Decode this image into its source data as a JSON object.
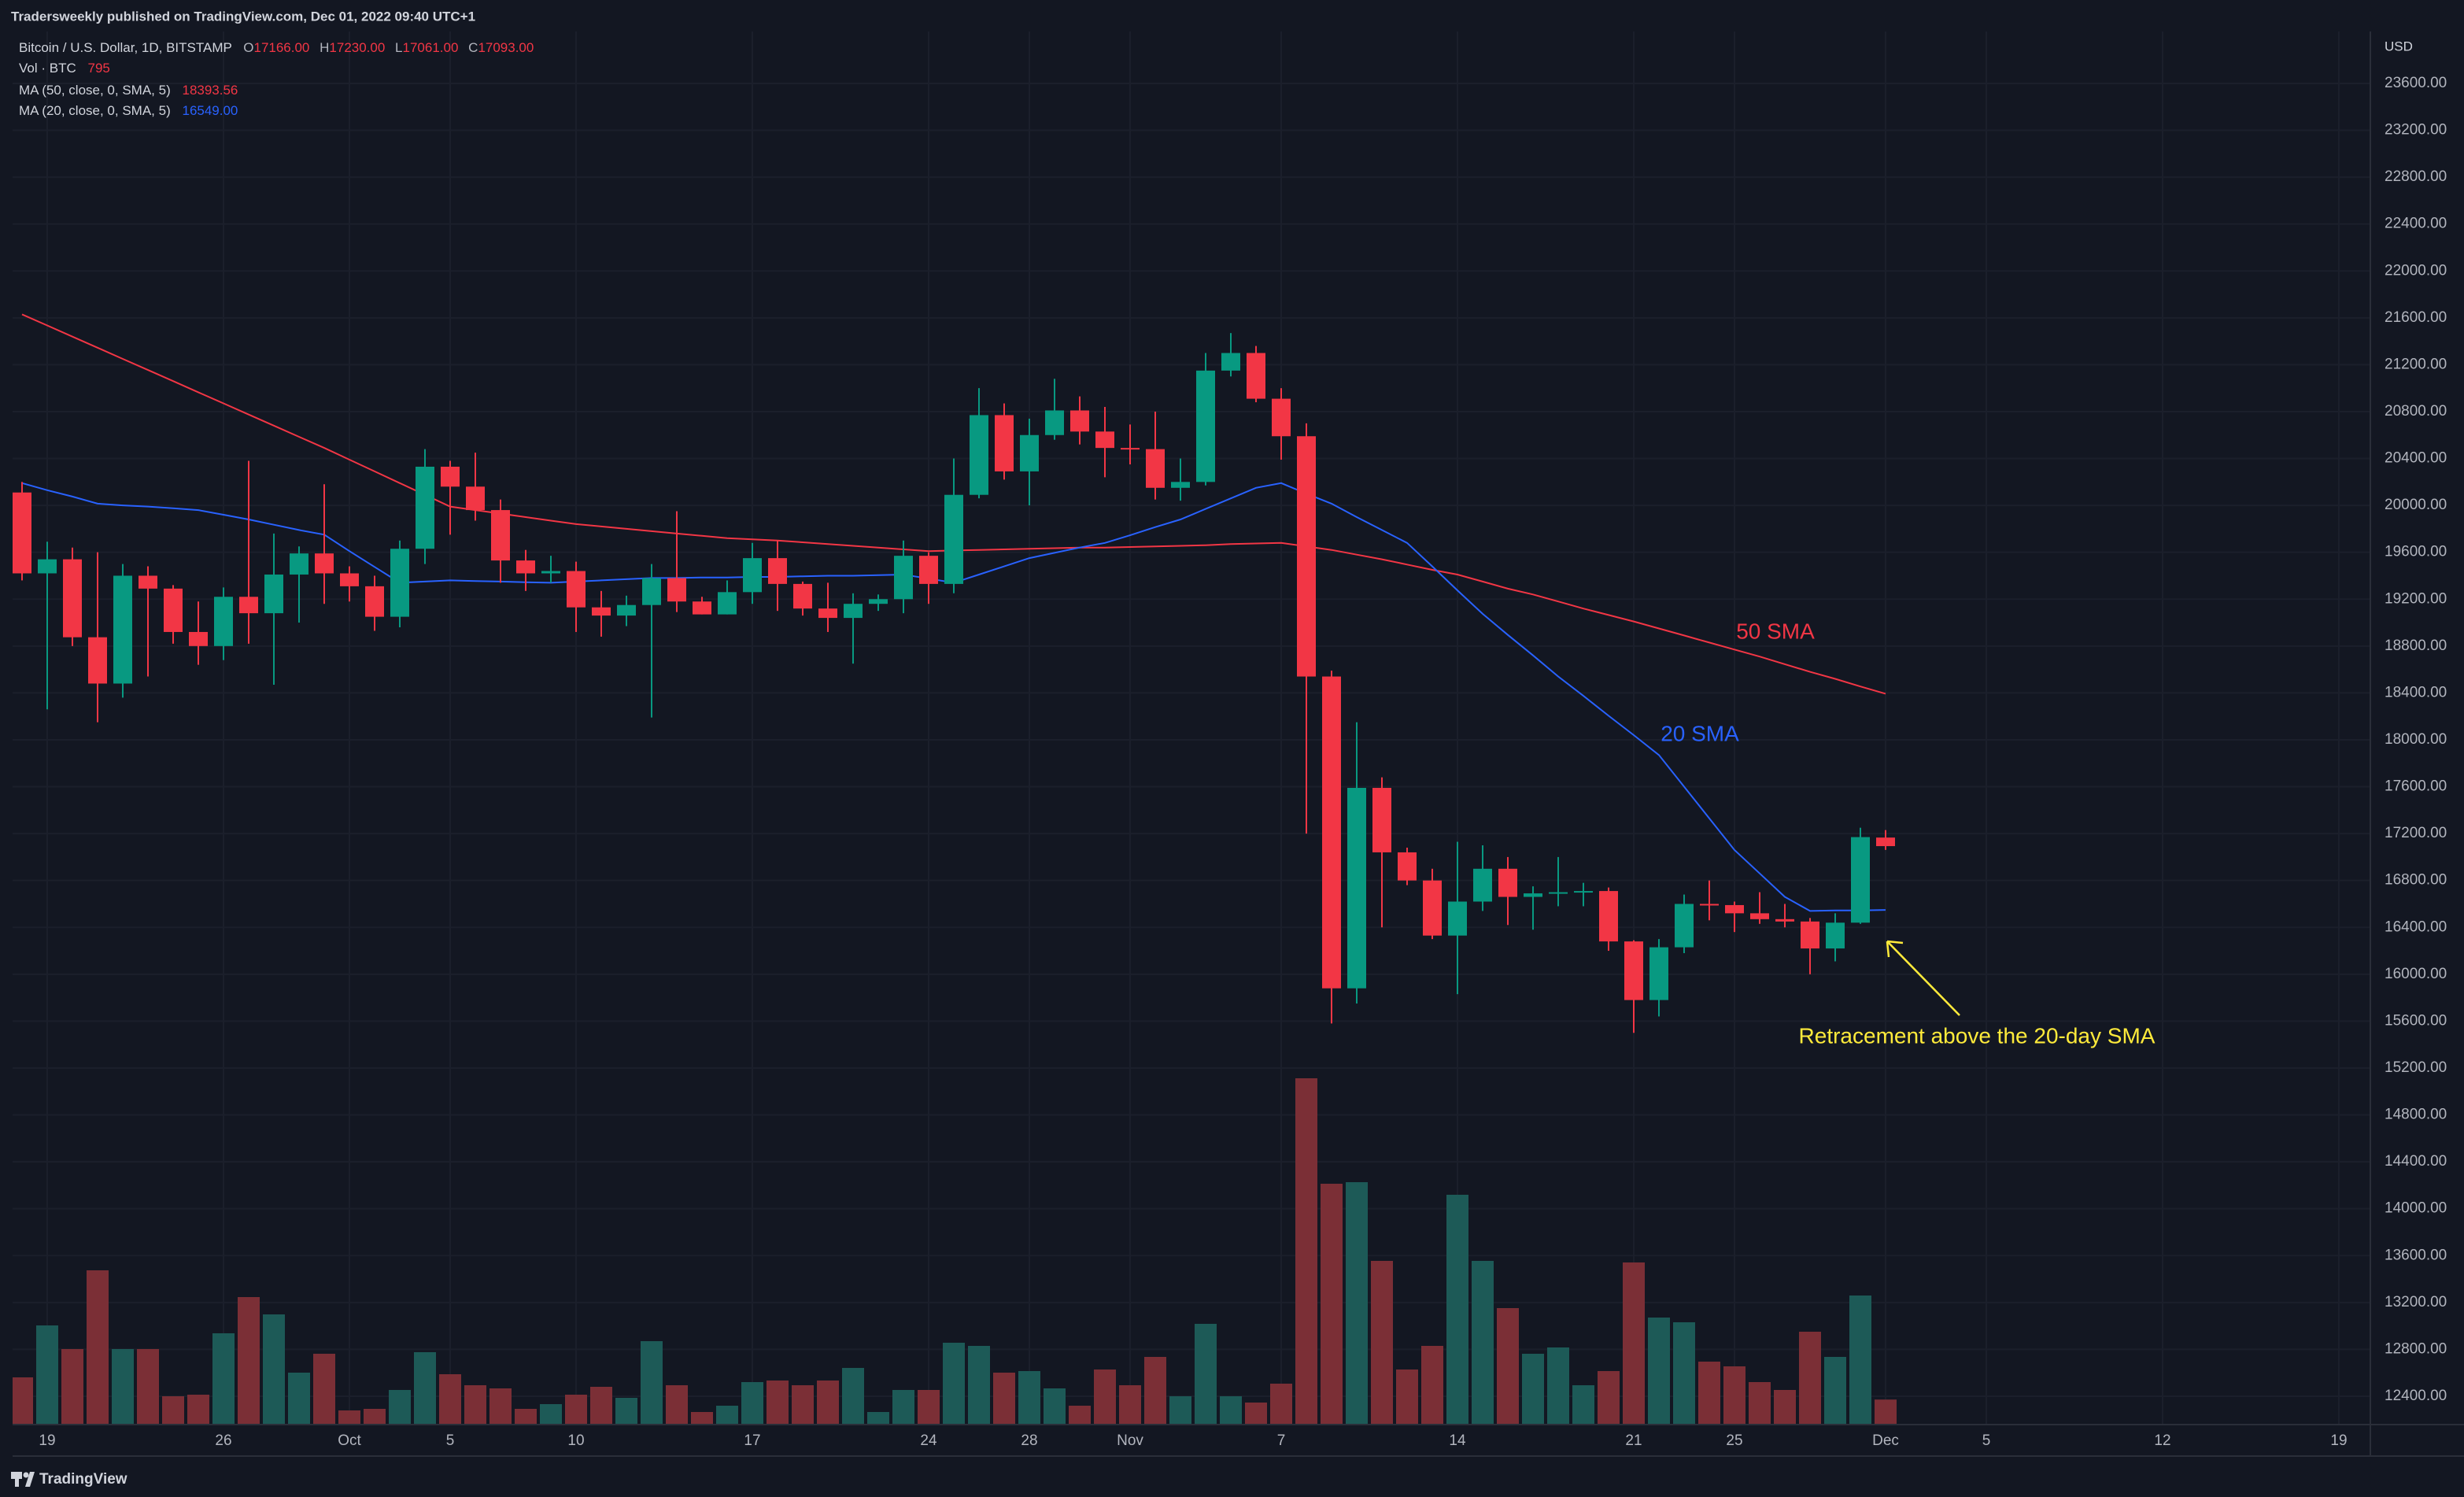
{
  "header": {
    "title": "Tradersweekly published on TradingView.com, Dec 01, 2022 09:40 UTC+1",
    "symbol": "Bitcoin / U.S. Dollar, 1D, BITSTAMP",
    "ohlc": [
      {
        "key": "O",
        "value": "17166.00"
      },
      {
        "key": "H",
        "value": "17230.00"
      },
      {
        "key": "L",
        "value": "17061.00"
      },
      {
        "key": "C",
        "value": "17093.00"
      }
    ],
    "volume_label": "Vol · BTC",
    "volume_value": "795",
    "ma_values": [
      "18393.56",
      "16549.00"
    ],
    "currency": "USD",
    "footer": "TradingView"
  },
  "chart_data": {
    "type": "candlestick",
    "up_color": "#089981",
    "down_color": "#f23645",
    "volume_up_color": "#1d5a57",
    "volume_down_color": "#7b2f36",
    "x": [
      "2022-09-18",
      "2022-09-19",
      "2022-09-20",
      "2022-09-21",
      "2022-09-22",
      "2022-09-23",
      "2022-09-24",
      "2022-09-25",
      "2022-09-26",
      "2022-09-27",
      "2022-09-28",
      "2022-09-29",
      "2022-09-30",
      "2022-10-01",
      "2022-10-02",
      "2022-10-03",
      "2022-10-04",
      "2022-10-05",
      "2022-10-06",
      "2022-10-07",
      "2022-10-08",
      "2022-10-09",
      "2022-10-10",
      "2022-10-11",
      "2022-10-12",
      "2022-10-13",
      "2022-10-14",
      "2022-10-15",
      "2022-10-16",
      "2022-10-17",
      "2022-10-18",
      "2022-10-19",
      "2022-10-20",
      "2022-10-21",
      "2022-10-22",
      "2022-10-23",
      "2022-10-24",
      "2022-10-25",
      "2022-10-26",
      "2022-10-27",
      "2022-10-28",
      "2022-10-29",
      "2022-10-30",
      "2022-10-31",
      "2022-11-01",
      "2022-11-02",
      "2022-11-03",
      "2022-11-04",
      "2022-11-05",
      "2022-11-06",
      "2022-11-07",
      "2022-11-08",
      "2022-11-09",
      "2022-11-10",
      "2022-11-11",
      "2022-11-12",
      "2022-11-13",
      "2022-11-14",
      "2022-11-15",
      "2022-11-16",
      "2022-11-17",
      "2022-11-18",
      "2022-11-19",
      "2022-11-20",
      "2022-11-21",
      "2022-11-22",
      "2022-11-23",
      "2022-11-24",
      "2022-11-25",
      "2022-11-26",
      "2022-11-27",
      "2022-11-28",
      "2022-11-29",
      "2022-11-30",
      "2022-12-01"
    ],
    "open": [
      20110,
      19420,
      19540,
      18875,
      18480,
      19400,
      19290,
      18920,
      18800,
      19220,
      19080,
      19410,
      19590,
      19420,
      19310,
      19050,
      19630,
      20330,
      20160,
      19960,
      19530,
      19420,
      19440,
      19130,
      19060,
      19150,
      19380,
      19180,
      19070,
      19260,
      19550,
      19330,
      19120,
      19040,
      19160,
      19200,
      19570,
      19330,
      20090,
      20770,
      20290,
      20600,
      20810,
      20630,
      20490,
      20480,
      20150,
      20200,
      21150,
      21300,
      20910,
      20590,
      18540,
      15880,
      17590,
      17040,
      16800,
      16330,
      16620,
      16900,
      16660,
      16690,
      16700,
      16710,
      16280,
      15780,
      16230,
      16600,
      16590,
      16520,
      16470,
      16450,
      16220,
      16440,
      17166
    ],
    "high": [
      20200,
      19690,
      19640,
      19600,
      19500,
      19480,
      19320,
      19180,
      19300,
      20380,
      19760,
      19650,
      20180,
      19480,
      19400,
      19700,
      20480,
      20380,
      20450,
      20050,
      19620,
      19570,
      19520,
      19270,
      19230,
      19500,
      19950,
      19220,
      19360,
      19680,
      19700,
      19350,
      19340,
      19250,
      19240,
      19700,
      19600,
      20400,
      21000,
      20870,
      20740,
      21080,
      20930,
      20840,
      20690,
      20800,
      20400,
      21300,
      21470,
      21360,
      21000,
      20700,
      18590,
      18150,
      17680,
      17080,
      16900,
      17130,
      17100,
      17000,
      16750,
      17000,
      16780,
      16740,
      16290,
      16300,
      16680,
      16800,
      16620,
      16700,
      16600,
      16480,
      16520,
      17250,
      17230
    ],
    "low": [
      19360,
      18260,
      18800,
      18150,
      18360,
      18540,
      18820,
      18640,
      18680,
      18820,
      18470,
      19000,
      19160,
      19180,
      18930,
      18960,
      19500,
      19750,
      19870,
      19340,
      19270,
      19340,
      18920,
      18880,
      18970,
      18190,
      19090,
      19070,
      19070,
      19160,
      19100,
      19060,
      18920,
      18650,
      19100,
      19080,
      19160,
      19250,
      20060,
      20220,
      20000,
      20560,
      20520,
      20240,
      20350,
      20050,
      20040,
      20170,
      21100,
      20880,
      20390,
      17200,
      15580,
      15750,
      16400,
      16760,
      16300,
      15830,
      16540,
      16420,
      16380,
      16580,
      16580,
      16200,
      15500,
      15640,
      16180,
      16460,
      16360,
      16430,
      16400,
      16000,
      16110,
      16430,
      17061
    ],
    "close": [
      19420,
      19540,
      18875,
      18480,
      19400,
      19290,
      18920,
      18800,
      19220,
      19080,
      19410,
      19590,
      19420,
      19310,
      19050,
      19630,
      20330,
      20160,
      19960,
      19530,
      19420,
      19440,
      19130,
      19060,
      19150,
      19380,
      19180,
      19070,
      19260,
      19550,
      19330,
      19120,
      19040,
      19160,
      19200,
      19570,
      19330,
      20090,
      20770,
      20290,
      20600,
      20810,
      20630,
      20490,
      20480,
      20150,
      20200,
      21150,
      21300,
      20910,
      20590,
      18540,
      15880,
      17590,
      17040,
      16800,
      16330,
      16620,
      16900,
      16660,
      16690,
      16700,
      16710,
      16280,
      15780,
      16230,
      16600,
      16590,
      16520,
      16470,
      16450,
      16220,
      16440,
      17170,
      17093
    ],
    "volume": [
      1500,
      3150,
      2400,
      4900,
      2400,
      2400,
      900,
      950,
      2900,
      4050,
      3500,
      1650,
      2250,
      450,
      500,
      1100,
      2300,
      1600,
      1250,
      1150,
      500,
      650,
      950,
      1200,
      850,
      2650,
      1250,
      400,
      600,
      1350,
      1400,
      1250,
      1400,
      1800,
      400,
      1100,
      1100,
      2600,
      2500,
      1650,
      1700,
      1150,
      600,
      1750,
      1250,
      2150,
      900,
      3200,
      900,
      700,
      1300,
      11000,
      7650,
      7700,
      5200,
      1750,
      2500,
      7300,
      5200,
      3700,
      2250,
      2450,
      1250,
      1700,
      5150,
      3400,
      3250,
      2000,
      1850,
      1350,
      1100,
      2950,
      2150,
      4100,
      795
    ],
    "series": [
      {
        "name": "MA (50, close, 0, SMA, 5)",
        "color": "#f23645",
        "values": [
          21630,
          21535,
          21440,
          21345,
          21250,
          21155,
          21060,
          20965,
          20870,
          20775,
          20680,
          20585,
          20490,
          20390,
          20290,
          20190,
          20090,
          19990,
          19960,
          19930,
          19900,
          19870,
          19840,
          19820,
          19800,
          19780,
          19760,
          19740,
          19720,
          19710,
          19700,
          19685,
          19670,
          19655,
          19640,
          19625,
          19610,
          19615,
          19620,
          19625,
          19630,
          19635,
          19640,
          19640,
          19645,
          19650,
          19655,
          19660,
          19670,
          19675,
          19680,
          19650,
          19620,
          19580,
          19540,
          19495,
          19450,
          19410,
          19350,
          19290,
          19240,
          19180,
          19120,
          19065,
          19010,
          18950,
          18890,
          18830,
          18770,
          18710,
          18645,
          18580,
          18520,
          18455,
          18393.56
        ]
      },
      {
        "name": "MA (20, close, 0, SMA, 5)",
        "color": "#2962ff",
        "values": [
          20190,
          20130,
          20075,
          20015,
          20000,
          19990,
          19975,
          19960,
          19920,
          19880,
          19835,
          19790,
          19750,
          19610,
          19475,
          19340,
          19350,
          19360,
          19355,
          19350,
          19345,
          19340,
          19350,
          19360,
          19370,
          19380,
          19380,
          19385,
          19385,
          19390,
          19390,
          19395,
          19400,
          19400,
          19405,
          19410,
          19375,
          19340,
          19410,
          19480,
          19550,
          19595,
          19640,
          19680,
          19745,
          19815,
          19880,
          19970,
          20060,
          20150,
          20190,
          20100,
          20015,
          19900,
          19790,
          19680,
          19480,
          19275,
          19075,
          18895,
          18720,
          18540,
          18375,
          18205,
          18040,
          17870,
          17600,
          17330,
          17060,
          16860,
          16660,
          16540,
          16545,
          16545,
          16549
        ]
      }
    ],
    "annotations": [
      {
        "text": "50 SMA",
        "color": "#f23645"
      },
      {
        "text": "20 SMA",
        "color": "#2962ff"
      },
      {
        "text": "Retracement above the 20-day SMA",
        "color": "#ffeb3b"
      }
    ],
    "xlim": [
      "2022-09-17",
      "2022-12-20"
    ],
    "xticks": [
      {
        "value": "2022-09-19",
        "label": "19"
      },
      {
        "value": "2022-09-26",
        "label": "26"
      },
      {
        "value": "2022-10-01",
        "label": "Oct"
      },
      {
        "value": "2022-10-05",
        "label": "5"
      },
      {
        "value": "2022-10-10",
        "label": "10"
      },
      {
        "value": "2022-10-17",
        "label": "17"
      },
      {
        "value": "2022-10-24",
        "label": "24"
      },
      {
        "value": "2022-10-28",
        "label": "28"
      },
      {
        "value": "2022-11-01",
        "label": "Nov"
      },
      {
        "value": "2022-11-07",
        "label": "7"
      },
      {
        "value": "2022-11-14",
        "label": "14"
      },
      {
        "value": "2022-11-21",
        "label": "21"
      },
      {
        "value": "2022-11-25",
        "label": "25"
      },
      {
        "value": "2022-12-01",
        "label": "Dec"
      },
      {
        "value": "2022-12-05",
        "label": "5"
      },
      {
        "value": "2022-12-12",
        "label": "12"
      },
      {
        "value": "2022-12-19",
        "label": "19"
      }
    ],
    "ylim": [
      12158,
      24043
    ],
    "volume_ylim": [
      0,
      44250
    ],
    "yticks": [
      {
        "value": 12400,
        "label": "12400.00"
      },
      {
        "value": 12800,
        "label": "12800.00"
      },
      {
        "value": 13200,
        "label": "13200.00"
      },
      {
        "value": 13600,
        "label": "13600.00"
      },
      {
        "value": 14000,
        "label": "14000.00"
      },
      {
        "value": 14400,
        "label": "14400.00"
      },
      {
        "value": 14800,
        "label": "14800.00"
      },
      {
        "value": 15200,
        "label": "15200.00"
      },
      {
        "value": 15600,
        "label": "15600.00"
      },
      {
        "value": 16000,
        "label": "16000.00"
      },
      {
        "value": 16400,
        "label": "16400.00"
      },
      {
        "value": 16800,
        "label": "16800.00"
      },
      {
        "value": 17200,
        "label": "17200.00"
      },
      {
        "value": 17600,
        "label": "17600.00"
      },
      {
        "value": 18000,
        "label": "18000.00"
      },
      {
        "value": 18400,
        "label": "18400.00"
      },
      {
        "value": 18800,
        "label": "18800.00"
      },
      {
        "value": 19200,
        "label": "19200.00"
      },
      {
        "value": 19600,
        "label": "19600.00"
      },
      {
        "value": 20000,
        "label": "20000.00"
      },
      {
        "value": 20400,
        "label": "20400.00"
      },
      {
        "value": 20800,
        "label": "20800.00"
      },
      {
        "value": 21200,
        "label": "21200.00"
      },
      {
        "value": 21600,
        "label": "21600.00"
      },
      {
        "value": 22000,
        "label": "22000.00"
      },
      {
        "value": 22400,
        "label": "22400.00"
      },
      {
        "value": 22800,
        "label": "22800.00"
      },
      {
        "value": 23200,
        "label": "23200.00"
      },
      {
        "value": 23600,
        "label": "23600.00"
      }
    ],
    "grid": true
  }
}
